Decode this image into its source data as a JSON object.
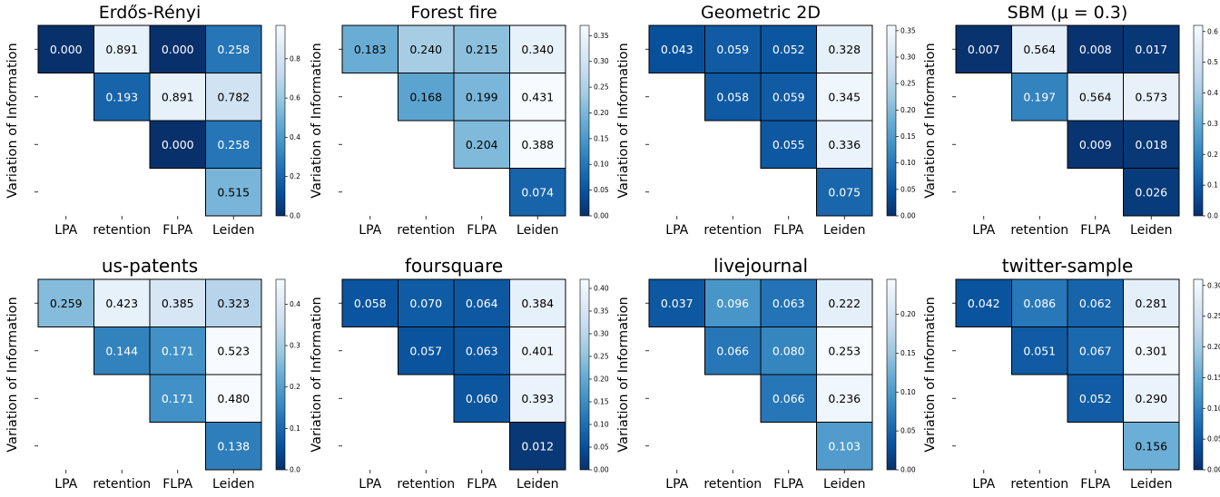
{
  "chart_data": [
    {
      "type": "heatmap",
      "title": "Erdős-Rényi",
      "title_font": "sans",
      "ylabel": "Variation of Information",
      "categories": [
        "LPA",
        "retention",
        "FLPA",
        "Leiden"
      ],
      "cells": [
        {
          "row": 0,
          "col": 0,
          "value": 0.0,
          "label": "0.000"
        },
        {
          "row": 0,
          "col": 1,
          "value": 0.891,
          "label": "0.891"
        },
        {
          "row": 0,
          "col": 2,
          "value": 0.0,
          "label": "0.000"
        },
        {
          "row": 0,
          "col": 3,
          "value": 0.258,
          "label": "0.258"
        },
        {
          "row": 1,
          "col": 1,
          "value": 0.193,
          "label": "0.193"
        },
        {
          "row": 1,
          "col": 2,
          "value": 0.891,
          "label": "0.891"
        },
        {
          "row": 1,
          "col": 3,
          "value": 0.782,
          "label": "0.782"
        },
        {
          "row": 2,
          "col": 2,
          "value": 0.0,
          "label": "0.000"
        },
        {
          "row": 2,
          "col": 3,
          "value": 0.258,
          "label": "0.258"
        },
        {
          "row": 3,
          "col": 3,
          "value": 0.515,
          "label": "0.515"
        }
      ],
      "colorbar": {
        "min": 0,
        "max": 0.97,
        "ticks": [
          "0.0",
          "0.2",
          "0.4",
          "0.6",
          "0.8"
        ],
        "tick_values": [
          0,
          0.2,
          0.4,
          0.6,
          0.8
        ]
      }
    },
    {
      "type": "heatmap",
      "title": "Forest fire",
      "title_font": "sans",
      "ylabel": "Variation of Information",
      "categories": [
        "LPA",
        "retention",
        "FLPA",
        "Leiden"
      ],
      "cells": [
        {
          "row": 0,
          "col": 0,
          "value": 0.183,
          "label": "0.183"
        },
        {
          "row": 0,
          "col": 1,
          "value": 0.24,
          "label": "0.240"
        },
        {
          "row": 0,
          "col": 2,
          "value": 0.215,
          "label": "0.215"
        },
        {
          "row": 0,
          "col": 3,
          "value": 0.34,
          "label": "0.340"
        },
        {
          "row": 1,
          "col": 1,
          "value": 0.168,
          "label": "0.168"
        },
        {
          "row": 1,
          "col": 2,
          "value": 0.199,
          "label": "0.199"
        },
        {
          "row": 1,
          "col": 3,
          "value": 0.431,
          "label": "0.431"
        },
        {
          "row": 2,
          "col": 2,
          "value": 0.204,
          "label": "0.204"
        },
        {
          "row": 2,
          "col": 3,
          "value": 0.388,
          "label": "0.388"
        },
        {
          "row": 3,
          "col": 3,
          "value": 0.074,
          "label": "0.074"
        }
      ],
      "colorbar": {
        "min": 0,
        "max": 0.37,
        "ticks": [
          "0.00",
          "0.05",
          "0.10",
          "0.15",
          "0.20",
          "0.25",
          "0.30",
          "0.35"
        ],
        "tick_values": [
          0,
          0.05,
          0.1,
          0.15,
          0.2,
          0.25,
          0.3,
          0.35
        ]
      }
    },
    {
      "type": "heatmap",
      "title": "Geometric 2D",
      "title_font": "sans",
      "ylabel": "Variation of Information",
      "categories": [
        "LPA",
        "retention",
        "FLPA",
        "Leiden"
      ],
      "cells": [
        {
          "row": 0,
          "col": 0,
          "value": 0.043,
          "label": "0.043"
        },
        {
          "row": 0,
          "col": 1,
          "value": 0.059,
          "label": "0.059"
        },
        {
          "row": 0,
          "col": 2,
          "value": 0.052,
          "label": "0.052"
        },
        {
          "row": 0,
          "col": 3,
          "value": 0.328,
          "label": "0.328"
        },
        {
          "row": 1,
          "col": 1,
          "value": 0.058,
          "label": "0.058"
        },
        {
          "row": 1,
          "col": 2,
          "value": 0.059,
          "label": "0.059"
        },
        {
          "row": 1,
          "col": 3,
          "value": 0.345,
          "label": "0.345"
        },
        {
          "row": 2,
          "col": 2,
          "value": 0.055,
          "label": "0.055"
        },
        {
          "row": 2,
          "col": 3,
          "value": 0.336,
          "label": "0.336"
        },
        {
          "row": 3,
          "col": 3,
          "value": 0.075,
          "label": "0.075"
        }
      ],
      "colorbar": {
        "min": 0,
        "max": 0.36,
        "ticks": [
          "0.00",
          "0.05",
          "0.10",
          "0.15",
          "0.20",
          "0.25",
          "0.30",
          "0.35"
        ],
        "tick_values": [
          0,
          0.05,
          0.1,
          0.15,
          0.2,
          0.25,
          0.3,
          0.35
        ]
      }
    },
    {
      "type": "heatmap",
      "title": "SBM (μ = 0.3)",
      "title_font": "sans",
      "ylabel": "Variation of Information",
      "categories": [
        "LPA",
        "retention",
        "FLPA",
        "Leiden"
      ],
      "cells": [
        {
          "row": 0,
          "col": 0,
          "value": 0.007,
          "label": "0.007"
        },
        {
          "row": 0,
          "col": 1,
          "value": 0.564,
          "label": "0.564"
        },
        {
          "row": 0,
          "col": 2,
          "value": 0.008,
          "label": "0.008"
        },
        {
          "row": 0,
          "col": 3,
          "value": 0.017,
          "label": "0.017"
        },
        {
          "row": 1,
          "col": 1,
          "value": 0.197,
          "label": "0.197"
        },
        {
          "row": 1,
          "col": 2,
          "value": 0.564,
          "label": "0.564"
        },
        {
          "row": 1,
          "col": 3,
          "value": 0.573,
          "label": "0.573"
        },
        {
          "row": 2,
          "col": 2,
          "value": 0.009,
          "label": "0.009"
        },
        {
          "row": 2,
          "col": 3,
          "value": 0.018,
          "label": "0.018"
        },
        {
          "row": 3,
          "col": 3,
          "value": 0.026,
          "label": "0.026"
        }
      ],
      "colorbar": {
        "min": 0,
        "max": 0.62,
        "ticks": [
          "0.0",
          "0.1",
          "0.2",
          "0.3",
          "0.4",
          "0.5",
          "0.6"
        ],
        "tick_values": [
          0,
          0.1,
          0.2,
          0.3,
          0.4,
          0.5,
          0.6
        ]
      }
    },
    {
      "type": "heatmap",
      "title": "us-patents",
      "title_font": "mono",
      "ylabel": "Variation of Information",
      "categories": [
        "LPA",
        "retention",
        "FLPA",
        "Leiden"
      ],
      "cells": [
        {
          "row": 0,
          "col": 0,
          "value": 0.259,
          "label": "0.259"
        },
        {
          "row": 0,
          "col": 1,
          "value": 0.423,
          "label": "0.423"
        },
        {
          "row": 0,
          "col": 2,
          "value": 0.385,
          "label": "0.385"
        },
        {
          "row": 0,
          "col": 3,
          "value": 0.323,
          "label": "0.323"
        },
        {
          "row": 1,
          "col": 1,
          "value": 0.144,
          "label": "0.144"
        },
        {
          "row": 1,
          "col": 2,
          "value": 0.171,
          "label": "0.171"
        },
        {
          "row": 1,
          "col": 3,
          "value": 0.523,
          "label": "0.523"
        },
        {
          "row": 2,
          "col": 2,
          "value": 0.171,
          "label": "0.171"
        },
        {
          "row": 2,
          "col": 3,
          "value": 0.48,
          "label": "0.480"
        },
        {
          "row": 3,
          "col": 3,
          "value": 0.138,
          "label": "0.138"
        }
      ],
      "colorbar": {
        "min": 0,
        "max": 0.46,
        "ticks": [
          "0.0",
          "0.1",
          "0.2",
          "0.3",
          "0.4"
        ],
        "tick_values": [
          0,
          0.1,
          0.2,
          0.3,
          0.4
        ]
      }
    },
    {
      "type": "heatmap",
      "title": "foursquare",
      "title_font": "mono",
      "ylabel": "Variation of Information",
      "categories": [
        "LPA",
        "retention",
        "FLPA",
        "Leiden"
      ],
      "cells": [
        {
          "row": 0,
          "col": 0,
          "value": 0.058,
          "label": "0.058"
        },
        {
          "row": 0,
          "col": 1,
          "value": 0.07,
          "label": "0.070"
        },
        {
          "row": 0,
          "col": 2,
          "value": 0.064,
          "label": "0.064"
        },
        {
          "row": 0,
          "col": 3,
          "value": 0.384,
          "label": "0.384"
        },
        {
          "row": 1,
          "col": 1,
          "value": 0.057,
          "label": "0.057"
        },
        {
          "row": 1,
          "col": 2,
          "value": 0.063,
          "label": "0.063"
        },
        {
          "row": 1,
          "col": 3,
          "value": 0.401,
          "label": "0.401"
        },
        {
          "row": 2,
          "col": 2,
          "value": 0.06,
          "label": "0.060"
        },
        {
          "row": 2,
          "col": 3,
          "value": 0.393,
          "label": "0.393"
        },
        {
          "row": 3,
          "col": 3,
          "value": 0.012,
          "label": "0.012"
        }
      ],
      "colorbar": {
        "min": 0,
        "max": 0.42,
        "ticks": [
          "0.00",
          "0.05",
          "0.10",
          "0.15",
          "0.20",
          "0.25",
          "0.30",
          "0.35",
          "0.40"
        ],
        "tick_values": [
          0,
          0.05,
          0.1,
          0.15,
          0.2,
          0.25,
          0.3,
          0.35,
          0.4
        ]
      }
    },
    {
      "type": "heatmap",
      "title": "livejournal",
      "title_font": "mono",
      "ylabel": "Variation of Information",
      "categories": [
        "LPA",
        "retention",
        "FLPA",
        "Leiden"
      ],
      "cells": [
        {
          "row": 0,
          "col": 0,
          "value": 0.037,
          "label": "0.037"
        },
        {
          "row": 0,
          "col": 1,
          "value": 0.096,
          "label": "0.096"
        },
        {
          "row": 0,
          "col": 2,
          "value": 0.063,
          "label": "0.063"
        },
        {
          "row": 0,
          "col": 3,
          "value": 0.222,
          "label": "0.222"
        },
        {
          "row": 1,
          "col": 1,
          "value": 0.066,
          "label": "0.066"
        },
        {
          "row": 1,
          "col": 2,
          "value": 0.08,
          "label": "0.080"
        },
        {
          "row": 1,
          "col": 3,
          "value": 0.253,
          "label": "0.253"
        },
        {
          "row": 2,
          "col": 2,
          "value": 0.066,
          "label": "0.066"
        },
        {
          "row": 2,
          "col": 3,
          "value": 0.236,
          "label": "0.236"
        },
        {
          "row": 3,
          "col": 3,
          "value": 0.103,
          "label": "0.103"
        }
      ],
      "colorbar": {
        "min": 0,
        "max": 0.245,
        "ticks": [
          "0.00",
          "0.05",
          "0.10",
          "0.15",
          "0.20"
        ],
        "tick_values": [
          0,
          0.05,
          0.1,
          0.15,
          0.2
        ]
      }
    },
    {
      "type": "heatmap",
      "title": "twitter-sample",
      "title_font": "mono",
      "ylabel": "Variation of Information",
      "categories": [
        "LPA",
        "retention",
        "FLPA",
        "Leiden"
      ],
      "cells": [
        {
          "row": 0,
          "col": 0,
          "value": 0.042,
          "label": "0.042"
        },
        {
          "row": 0,
          "col": 1,
          "value": 0.086,
          "label": "0.086"
        },
        {
          "row": 0,
          "col": 2,
          "value": 0.062,
          "label": "0.062"
        },
        {
          "row": 0,
          "col": 3,
          "value": 0.281,
          "label": "0.281"
        },
        {
          "row": 1,
          "col": 1,
          "value": 0.051,
          "label": "0.051"
        },
        {
          "row": 1,
          "col": 2,
          "value": 0.067,
          "label": "0.067"
        },
        {
          "row": 1,
          "col": 3,
          "value": 0.301,
          "label": "0.301"
        },
        {
          "row": 2,
          "col": 2,
          "value": 0.052,
          "label": "0.052"
        },
        {
          "row": 2,
          "col": 3,
          "value": 0.29,
          "label": "0.290"
        },
        {
          "row": 3,
          "col": 3,
          "value": 0.156,
          "label": "0.156"
        }
      ],
      "colorbar": {
        "min": 0,
        "max": 0.31,
        "ticks": [
          "0.00",
          "0.05",
          "0.10",
          "0.15",
          "0.20",
          "0.25",
          "0.30"
        ],
        "tick_values": [
          0,
          0.05,
          0.1,
          0.15,
          0.2,
          0.25,
          0.3
        ]
      }
    }
  ],
  "colormap": {
    "name": "Blues_r",
    "low_color": "#08306b",
    "high_color": "#f7fbff"
  }
}
